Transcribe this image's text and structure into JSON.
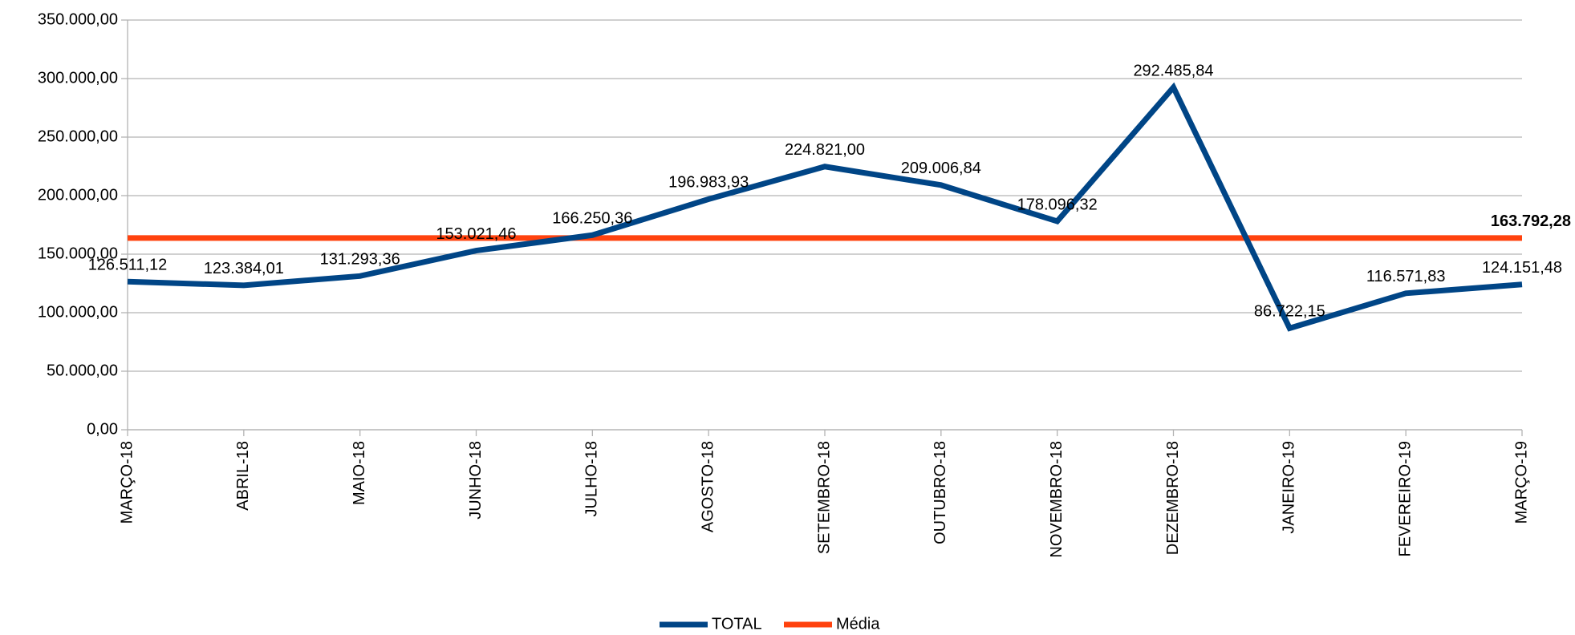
{
  "chart_data": {
    "type": "line",
    "categories": [
      "MARÇO-18",
      "ABRIL-18",
      "MAIO-18",
      "JUNHO-18",
      "JULHO-18",
      "AGOSTO-18",
      "SETEMBRO-18",
      "OUTUBRO-18",
      "NOVEMBRO-18",
      "DEZEMBRO-18",
      "JANEIRO-19",
      "FEVEREIRO-19",
      "MARÇO-19"
    ],
    "series": [
      {
        "name": "TOTAL",
        "color": "#004586",
        "values": [
          126511.12,
          123384.01,
          131293.36,
          153021.46,
          166250.36,
          196983.93,
          224821.0,
          209006.84,
          178096.32,
          292485.84,
          86722.15,
          116571.83,
          124151.48
        ],
        "value_labels": [
          "126.511,12",
          "123.384,01",
          "131.293,36",
          "153.021,46",
          "166.250,36",
          "196.983,93",
          "224.821,00",
          "209.006,84",
          "178.096,32",
          "292.485,84",
          "86.722,15",
          "116.571,83",
          "124.151,48"
        ]
      },
      {
        "name": "Média",
        "color": "#ff420e",
        "values": [
          163792.28,
          163792.28,
          163792.28,
          163792.28,
          163792.28,
          163792.28,
          163792.28,
          163792.28,
          163792.28,
          163792.28,
          163792.28,
          163792.28,
          163792.28
        ],
        "value_labels": [
          null,
          null,
          null,
          null,
          null,
          null,
          null,
          null,
          null,
          null,
          null,
          null,
          "163.792,28"
        ]
      }
    ],
    "ylim": [
      0,
      350000
    ],
    "yticks": [
      {
        "value": 0,
        "label": "0,00"
      },
      {
        "value": 50000,
        "label": "50.000,00"
      },
      {
        "value": 100000,
        "label": "100.000,00"
      },
      {
        "value": 150000,
        "label": "150.000,00"
      },
      {
        "value": 200000,
        "label": "200.000,00"
      },
      {
        "value": 250000,
        "label": "250.000,00"
      },
      {
        "value": 300000,
        "label": "300.000,00"
      },
      {
        "value": 350000,
        "label": "350.000,00"
      }
    ],
    "grid": true
  }
}
